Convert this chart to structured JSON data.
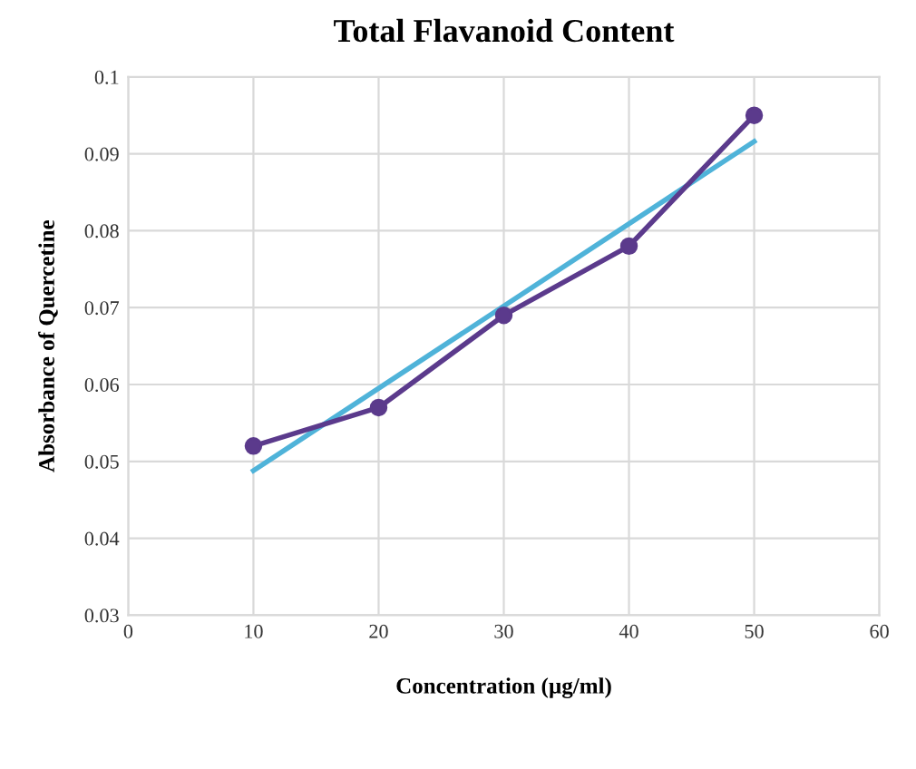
{
  "chart_data": {
    "type": "line",
    "title": "Total Flavanoid Content",
    "xlabel": "Concentration (µg/ml)",
    "ylabel": "Absorbance of Quercetine",
    "series": [
      {
        "color": "#5b3a8c",
        "x": [
          10,
          20,
          30,
          40,
          50
        ],
        "values": [
          0.052,
          0.057,
          0.069,
          0.078,
          0.095
        ],
        "marker": "circle"
      },
      {
        "type": "line",
        "color": "#4fb3d9",
        "x": [
          10,
          50
        ],
        "values": [
          0.0488,
          0.0916
        ],
        "marker": "none"
      }
    ],
    "xlim": [
      0,
      60
    ],
    "xticks": [
      0,
      10,
      20,
      30,
      40,
      50,
      60
    ],
    "ylim": [
      0.03,
      0.1
    ],
    "yticks": [
      0.03,
      0.04,
      0.05,
      0.06,
      0.07,
      0.08,
      0.09,
      0.1
    ],
    "grid": true,
    "line_style": "solid"
  }
}
